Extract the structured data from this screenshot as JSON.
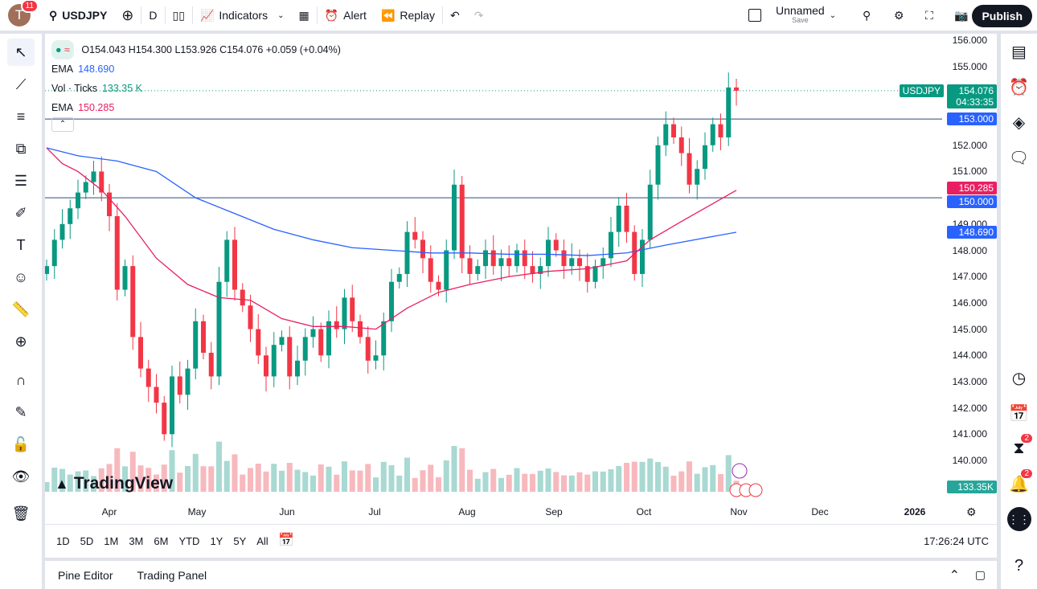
{
  "topbar": {
    "avatar_letter": "T",
    "avatar_badge": "11",
    "symbol": "USDJPY",
    "interval": "D",
    "indicators": "Indicators",
    "alert": "Alert",
    "replay": "Replay",
    "layout_name": "Unnamed",
    "layout_sub": "Save",
    "publish": "Publish"
  },
  "legend": {
    "ohlc": "O154.043 H154.300 L153.926 C154.076 +0.059 (+0.04%)",
    "ema1_label": "EMA",
    "ema1_value": "148.690",
    "vol_label": "Vol · Ticks",
    "vol_value": "133.35 K",
    "ema2_label": "EMA",
    "ema2_value": "150.285"
  },
  "price_axis": {
    "ticks": [
      "156.000",
      "155.000",
      "152.000",
      "151.000",
      "149.000",
      "148.000",
      "147.000",
      "146.000",
      "145.000",
      "144.000",
      "143.000",
      "142.000",
      "141.000",
      "140.000"
    ],
    "labels": {
      "symbol": "USDJPY",
      "last": "154.076",
      "countdown": "04:33:35",
      "line1": "153.000",
      "ema_red": "150.285",
      "line2": "150.000",
      "ema_blue": "148.690",
      "volume": "133.35K"
    }
  },
  "time_axis": [
    "Apr",
    "May",
    "Jun",
    "Jul",
    "Aug",
    "Sep",
    "Oct",
    "Nov",
    "Dec",
    "2026"
  ],
  "ranges": [
    "1D",
    "5D",
    "1M",
    "3M",
    "6M",
    "YTD",
    "1Y",
    "5Y",
    "All"
  ],
  "clock": "17:26:24 UTC",
  "bottom_tabs": [
    "Pine Editor",
    "Trading Panel"
  ],
  "watermark": "TradingView",
  "right_badges": {
    "signals": "2",
    "notifications": "2"
  },
  "colors": {
    "up": "#089981",
    "down": "#f23645",
    "ema_blue": "#2962ff",
    "ema_red": "#e91e63",
    "hline": "#2a4a7a"
  },
  "chart_data": {
    "type": "candlestick",
    "symbol": "USDJPY",
    "interval": "D",
    "ylim": [
      139.5,
      156.3
    ],
    "horizontal_lines": [
      153.0,
      150.0
    ],
    "closes": [
      147.4,
      148.4,
      149.0,
      149.6,
      150.2,
      150.6,
      151.0,
      150.2,
      149.3,
      146.5,
      147.4,
      144.7,
      143.5,
      142.8,
      142.2,
      141.0,
      143.2,
      142.5,
      143.5,
      145.3,
      144.1,
      143.2,
      146.8,
      148.4,
      146.5,
      145.9,
      145.0,
      144.0,
      143.2,
      144.4,
      144.7,
      143.2,
      143.8,
      144.7,
      145.0,
      144.0,
      145.3,
      145.0,
      146.2,
      145.3,
      144.7,
      143.8,
      144.0,
      145.3,
      146.8,
      147.1,
      148.7,
      148.4,
      147.7,
      146.8,
      146.5,
      148.0,
      150.5,
      147.7,
      147.1,
      147.4,
      148.0,
      147.4,
      147.7,
      147.4,
      148.0,
      147.4,
      147.1,
      147.4,
      148.4,
      148.0,
      147.4,
      147.7,
      147.4,
      146.8,
      147.4,
      147.7,
      148.7,
      149.7,
      148.7,
      147.1,
      148.4,
      150.5,
      152.0,
      152.8,
      152.3,
      151.7,
      150.5,
      151.1,
      152.0,
      152.8,
      152.3,
      154.2,
      154.076
    ],
    "ema_slow": [
      [
        0,
        151.9
      ],
      [
        4,
        151.6
      ],
      [
        9,
        151.4
      ],
      [
        14,
        151.0
      ],
      [
        19,
        150.0
      ],
      [
        24,
        149.4
      ],
      [
        29,
        148.8
      ],
      [
        34,
        148.4
      ],
      [
        39,
        148.1
      ],
      [
        44,
        148.0
      ],
      [
        49,
        147.9
      ],
      [
        54,
        147.9
      ],
      [
        59,
        147.85
      ],
      [
        64,
        147.85
      ],
      [
        69,
        147.8
      ],
      [
        74,
        147.9
      ],
      [
        79,
        148.2
      ],
      [
        88,
        148.69
      ]
    ],
    "ema_fast": [
      [
        0,
        151.9
      ],
      [
        2,
        151.3
      ],
      [
        4,
        151.0
      ],
      [
        7,
        150.3
      ],
      [
        10,
        149.3
      ],
      [
        14,
        147.7
      ],
      [
        18,
        146.7
      ],
      [
        22,
        146.2
      ],
      [
        26,
        146.1
      ],
      [
        30,
        145.4
      ],
      [
        34,
        145.1
      ],
      [
        38,
        145.1
      ],
      [
        42,
        145.0
      ],
      [
        46,
        145.8
      ],
      [
        50,
        146.4
      ],
      [
        54,
        146.7
      ],
      [
        59,
        147.0
      ],
      [
        64,
        147.2
      ],
      [
        69,
        147.3
      ],
      [
        74,
        147.6
      ],
      [
        77,
        148.4
      ],
      [
        81,
        149.1
      ],
      [
        88,
        150.285
      ]
    ]
  }
}
